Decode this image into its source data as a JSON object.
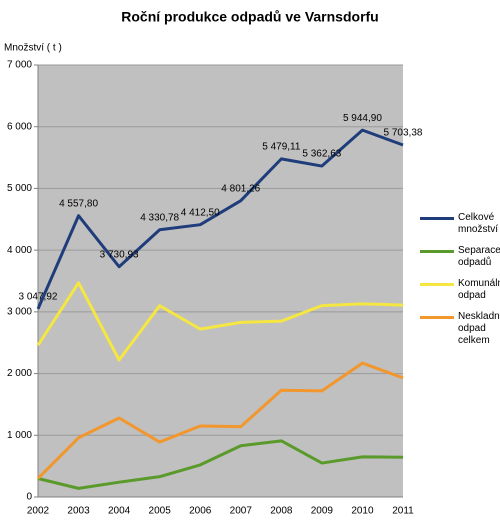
{
  "chart_data": {
    "type": "line",
    "title": "Roční produkce odpadů ve Varnsdorfu",
    "y_label": "Množství ( t )",
    "categories": [
      "2002",
      "2003",
      "2004",
      "2005",
      "2006",
      "2007",
      "2008",
      "2009",
      "2010",
      "2011"
    ],
    "series": [
      {
        "name": "Celkové množství",
        "color": "#1f3d7a",
        "values": [
          3047.92,
          4557.8,
          3730.93,
          4330.78,
          4412.5,
          4801.26,
          5479.11,
          5362.63,
          5944.9,
          5703.38
        ],
        "value_labels": [
          "3 047,92",
          "4 557,80",
          "3 730,93",
          "4 330,78",
          "4 412,50",
          "4 801,26",
          "5 479,11",
          "5 362,63",
          "5 944,90",
          "5 703,38"
        ]
      },
      {
        "name": "Separace odpadů",
        "color": "#5a9a2a",
        "values": [
          300,
          140,
          240,
          330,
          520,
          830,
          910,
          550,
          650,
          645
        ]
      },
      {
        "name": "Komunální odpad",
        "color": "#f5e642",
        "values": [
          2460,
          3470,
          2220,
          3100,
          2720,
          2830,
          2850,
          3100,
          3130,
          3110
        ]
      },
      {
        "name": "Neskladný odpad celkem",
        "color": "#f2962e",
        "values": [
          300,
          960,
          1280,
          890,
          1150,
          1140,
          1730,
          1720,
          2170,
          1930
        ]
      }
    ],
    "ylim": [
      0,
      7000
    ],
    "yticks": [
      0,
      {
        "value": 1000,
        "label": "1 000"
      },
      {
        "value": 2000,
        "label": "2 000"
      },
      {
        "value": 3000,
        "label": "3 000"
      },
      {
        "value": 4000,
        "label": "4 000"
      },
      {
        "value": 5000,
        "label": "5 000"
      },
      {
        "value": 6000,
        "label": "6 000"
      },
      {
        "value": 7000,
        "label": "7 000"
      }
    ],
    "grid": true,
    "plot_background": "#c0c0c0"
  }
}
